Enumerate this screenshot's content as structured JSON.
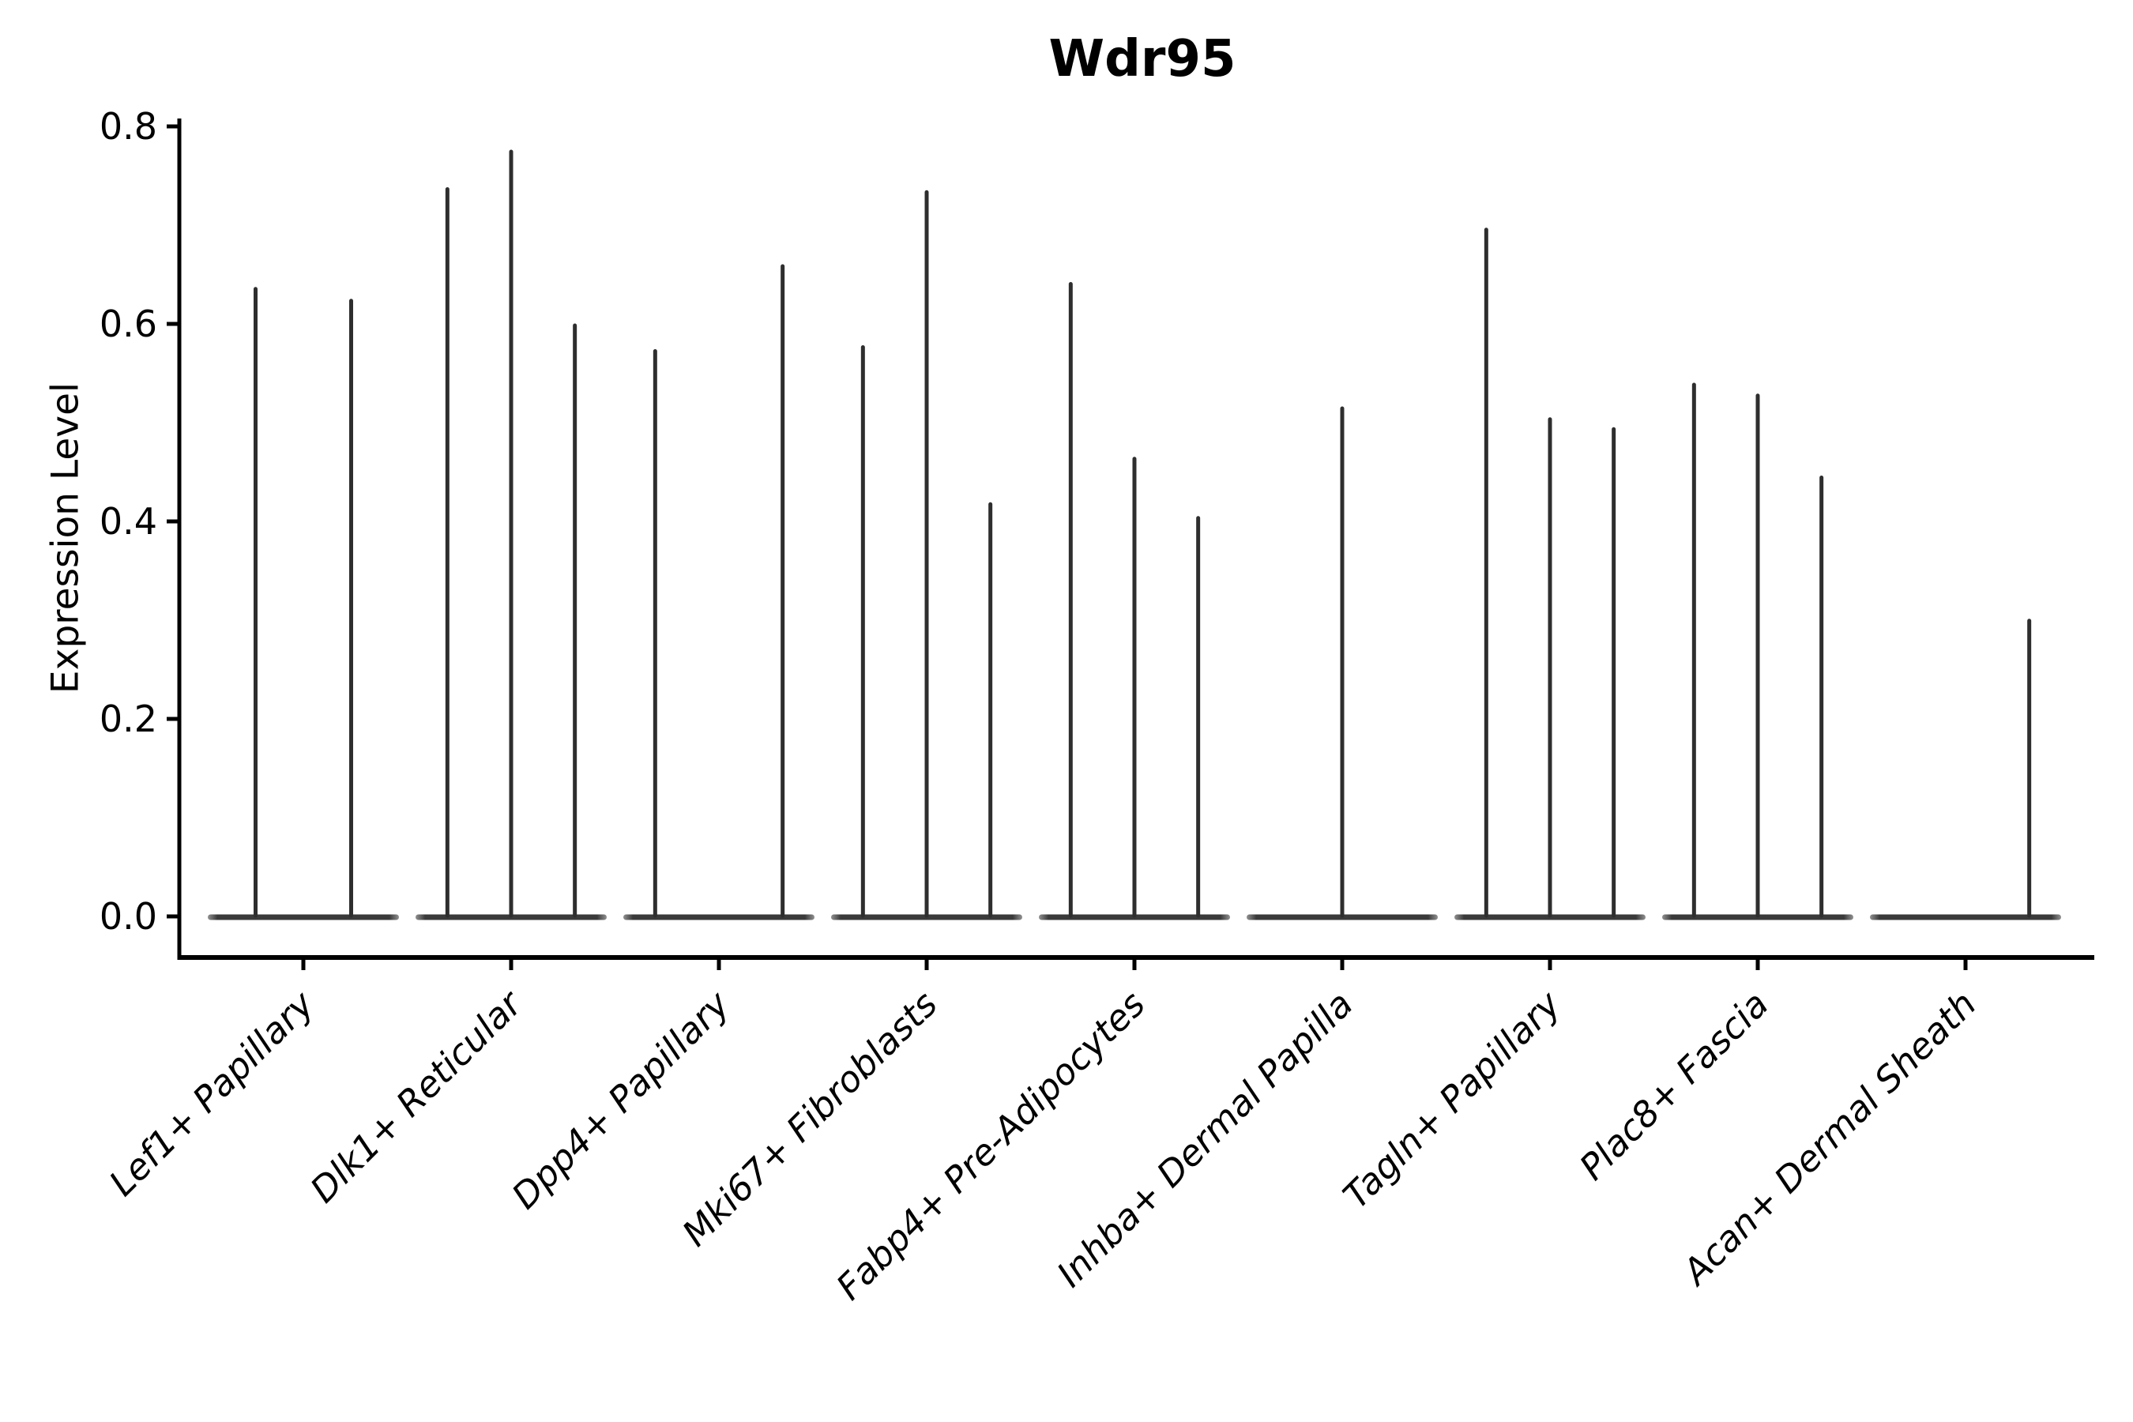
{
  "chart_data": {
    "type": "violin",
    "title": "Wdr95",
    "ylabel": "Expression Level",
    "xlabel": "",
    "ylim": [
      0.0,
      0.8
    ],
    "yticks": [
      0.0,
      0.2,
      0.4,
      0.6,
      0.8
    ],
    "ytick_labels": [
      "0.0",
      "0.2",
      "0.4",
      "0.6",
      "0.8"
    ],
    "grid": false,
    "legend": null,
    "categories": [
      "Lef1+ Papillary",
      "Dlk1+ Reticular",
      "Dpp4+ Papillary",
      "Mki67+ Fibroblasts",
      "Fabp4+ Pre-Adipocytes",
      "Inhba+ Dermal Papilla",
      "Tagln+ Papillary",
      "Plac8+ Fascia",
      "Acan+ Dermal Sheath"
    ],
    "series": [
      {
        "category": "Lef1+ Papillary",
        "violin_max_values": [
          0.637,
          0.625
        ]
      },
      {
        "category": "Dlk1+ Reticular",
        "violin_max_values": [
          0.738,
          0.776,
          0.6
        ]
      },
      {
        "category": "Dpp4+ Papillary",
        "violin_max_values": [
          0.574,
          0.0,
          0.66
        ]
      },
      {
        "category": "Mki67+ Fibroblasts",
        "violin_max_values": [
          0.578,
          0.735,
          0.419
        ]
      },
      {
        "category": "Fabp4+ Pre-Adipocytes",
        "violin_max_values": [
          0.642,
          0.465,
          0.405
        ]
      },
      {
        "category": "Inhba+ Dermal Papilla",
        "violin_max_values": [
          0.0,
          0.516,
          0.0
        ]
      },
      {
        "category": "Tagln+ Papillary",
        "violin_max_values": [
          0.697,
          0.505,
          0.495
        ]
      },
      {
        "category": "Plac8+ Fascia",
        "violin_max_values": [
          0.54,
          0.529,
          0.446
        ]
      },
      {
        "category": "Acan+ Dermal Sheath",
        "violin_max_values": [
          0.0,
          0.0,
          0.301
        ]
      }
    ],
    "note": "Each category shows thin violins (most mass at 0); zero entries are violins fully collapsed onto the 0 baseline.",
    "colors": {
      "violin": "#2e2e2e",
      "baseline_bar": "#3a3a3a",
      "baseline_bar_end_fade": "#929292",
      "spine": "#000000",
      "text": "#000000",
      "background": "#ffffff"
    }
  }
}
